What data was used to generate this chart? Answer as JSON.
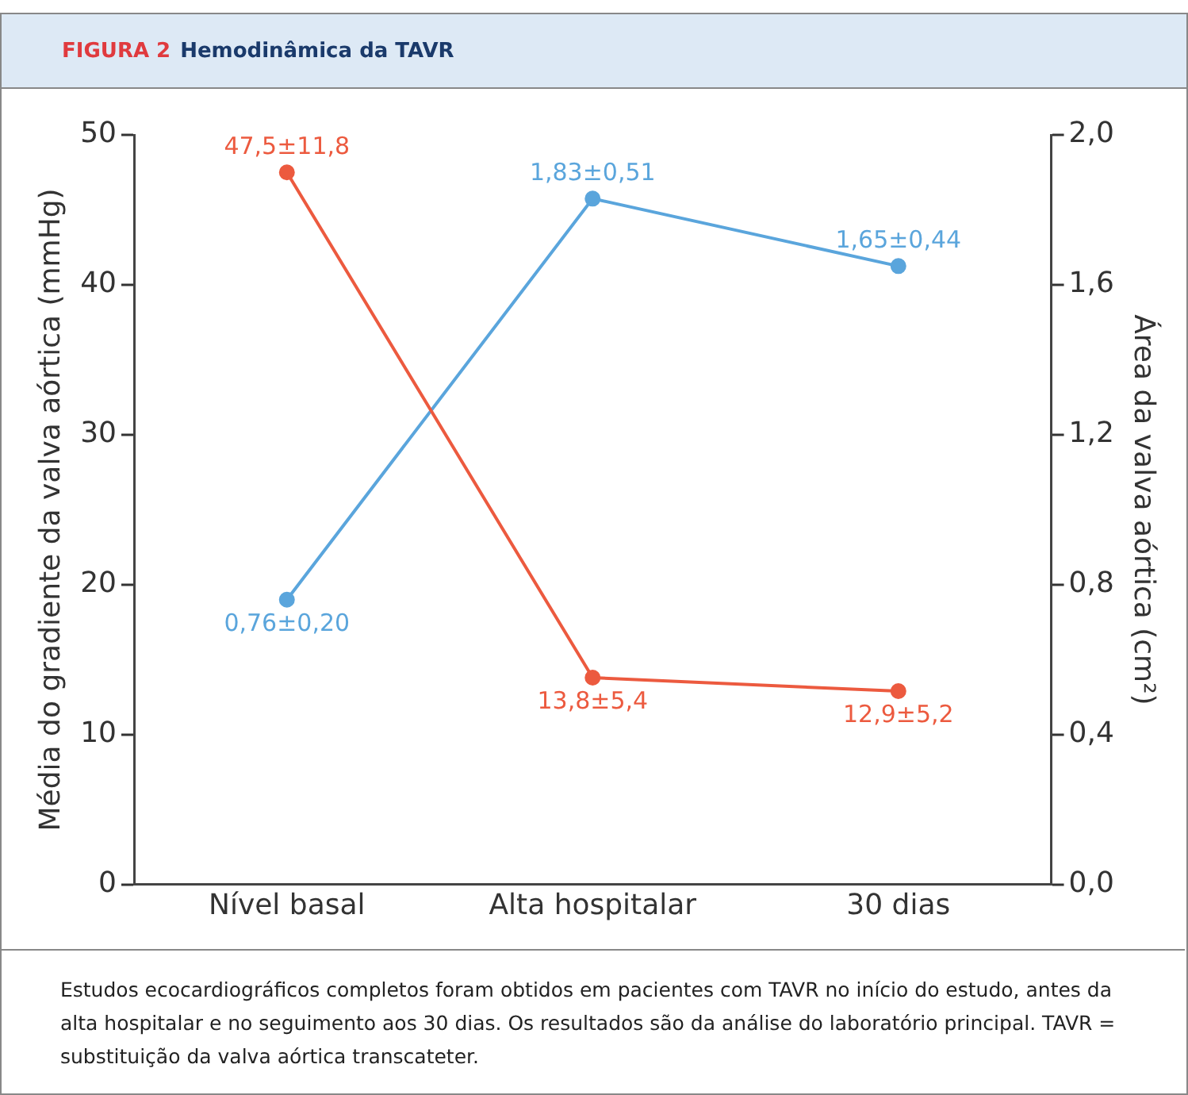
{
  "chart_data": {
    "type": "line",
    "subtitle": "FIGURA 2",
    "title": "Hemodinâmica da TAVR",
    "categories": [
      "Nível basal",
      "Alta hospitalar",
      "30 dias"
    ],
    "series": [
      {
        "color": "#ec5a3f",
        "values": [
          47.5,
          13.8,
          12.9
        ],
        "value_labels": [
          "47,5±11,8",
          "13,8±5,4",
          "12,9±5,2"
        ]
      },
      {
        "color": "#5aa5dc",
        "values": [
          0.76,
          1.83,
          1.65
        ],
        "axis": "y2",
        "value_labels": [
          "0,76±0,20",
          "1,83±0,51",
          "1,65±0,44"
        ]
      }
    ],
    "ylabel": "Média do gradiente da valva aórtica (mmHg)",
    "y2label": "Área da valva aórtica (cm²)",
    "ylim": [
      0,
      50
    ],
    "yticks": [
      0,
      10,
      20,
      30,
      40,
      50
    ],
    "y2lim": [
      0,
      2
    ],
    "y2ticks": [
      {
        "value": 0,
        "label": "0,0"
      },
      {
        "value": 0.4,
        "label": "0,4"
      },
      {
        "value": 0.8,
        "label": "0,8"
      },
      {
        "value": 1.2,
        "label": "1,2"
      },
      {
        "value": 1.6,
        "label": "1,6"
      },
      {
        "value": 2,
        "label": "2,0"
      }
    ],
    "grid": false,
    "legend": false,
    "marker": "circle",
    "line_style": "solid",
    "annotations": [
      "Estudos ecocardiográficos completos foram obtidos em pacientes com TAVR no início do estudo, antes da alta hospitalar e no seguimento aos 30 dias. Os resultados são da análise do laboratório principal. TAVR = substituição da valva aórtica transcateter."
    ]
  }
}
